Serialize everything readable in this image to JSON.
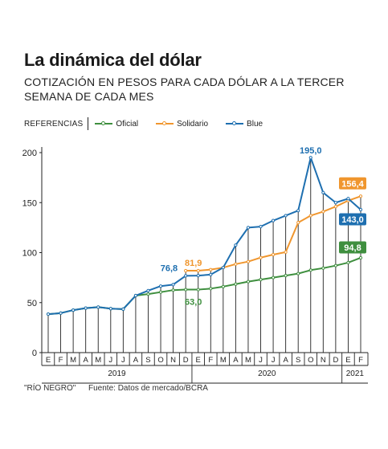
{
  "header": {
    "title": "La dinámica del dólar",
    "subtitle": "COTIZACIÓN EN PESOS PARA CADA DÓLAR A LA TERCER SEMANA DE CADA MES"
  },
  "legend": {
    "label": "REFERENCIAS",
    "items": [
      {
        "name": "Oficial",
        "color": "#3f8f3f"
      },
      {
        "name": "Solidario",
        "color": "#f0962e"
      },
      {
        "name": "Blue",
        "color": "#1e6fb0"
      }
    ]
  },
  "footer": {
    "source_credit": "\"RÍO NEGRO\"",
    "source": "Fuente: Datos de mercado/BCRA"
  },
  "chart_data": {
    "type": "line",
    "categories": [
      "E",
      "F",
      "M",
      "A",
      "M",
      "J",
      "J",
      "A",
      "S",
      "O",
      "N",
      "D",
      "E",
      "F",
      "M",
      "A",
      "M",
      "J",
      "J",
      "A",
      "S",
      "O",
      "N",
      "D",
      "E",
      "F"
    ],
    "year_groups": [
      {
        "label": "2019",
        "from": 0,
        "to": 11
      },
      {
        "label": "2020",
        "from": 12,
        "to": 23
      },
      {
        "label": "2021",
        "from": 24,
        "to": 25
      }
    ],
    "ylim": [
      0,
      200
    ],
    "yticks": [
      0,
      50,
      100,
      150,
      200
    ],
    "grid": false,
    "series": [
      {
        "name": "Oficial",
        "color": "#3f8f3f",
        "values": [
          38.5,
          39.5,
          42.5,
          44.5,
          45.5,
          44,
          43.5,
          57,
          58.5,
          60.5,
          62.5,
          63.0,
          63.0,
          64,
          66,
          68.5,
          71,
          73,
          75,
          77,
          79,
          82.5,
          84.5,
          87,
          90,
          94.8
        ]
      },
      {
        "name": "Solidario",
        "color": "#f0962e",
        "values": [
          null,
          null,
          null,
          null,
          null,
          null,
          null,
          null,
          null,
          null,
          null,
          81.9,
          81.9,
          83,
          85,
          88.5,
          91,
          95,
          98,
          100.5,
          130,
          137,
          141,
          146,
          152,
          156.4
        ]
      },
      {
        "name": "Blue",
        "color": "#1e6fb0",
        "values": [
          38.5,
          39.5,
          42.5,
          44.5,
          45.5,
          44,
          43.5,
          57,
          62,
          66.5,
          68,
          76.8,
          77,
          78,
          85,
          107.5,
          125,
          126,
          132,
          137,
          142,
          195.0,
          160,
          150,
          154,
          143.0
        ]
      }
    ],
    "annotations": [
      {
        "series": "Blue",
        "index": 11,
        "label": "76,8"
      },
      {
        "series": "Oficial",
        "index": 12,
        "label": "63,0"
      },
      {
        "series": "Solidario",
        "index": 12,
        "label": "81,9"
      },
      {
        "series": "Blue",
        "index": 21,
        "label": "195,0"
      },
      {
        "series": "Solidario",
        "index": 25,
        "label": "156,4"
      },
      {
        "series": "Blue",
        "index": 25,
        "label": "143,0"
      },
      {
        "series": "Oficial",
        "index": 25,
        "label": "94,8"
      }
    ]
  }
}
